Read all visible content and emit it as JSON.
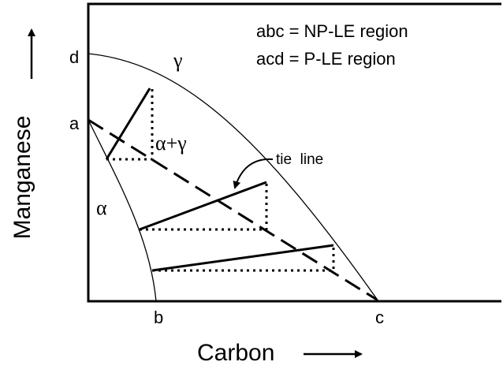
{
  "legend": [
    "abc = NP-LE region",
    "acd = P-LE region"
  ],
  "regions": {
    "gamma": "γ",
    "alpha_gamma": "α+γ",
    "alpha": "α"
  },
  "annotation": "tie  line",
  "points": {
    "d": "d",
    "a": "a",
    "b": "b",
    "c": "c"
  },
  "axes": {
    "y": "Manganese",
    "x": "Carbon"
  }
}
